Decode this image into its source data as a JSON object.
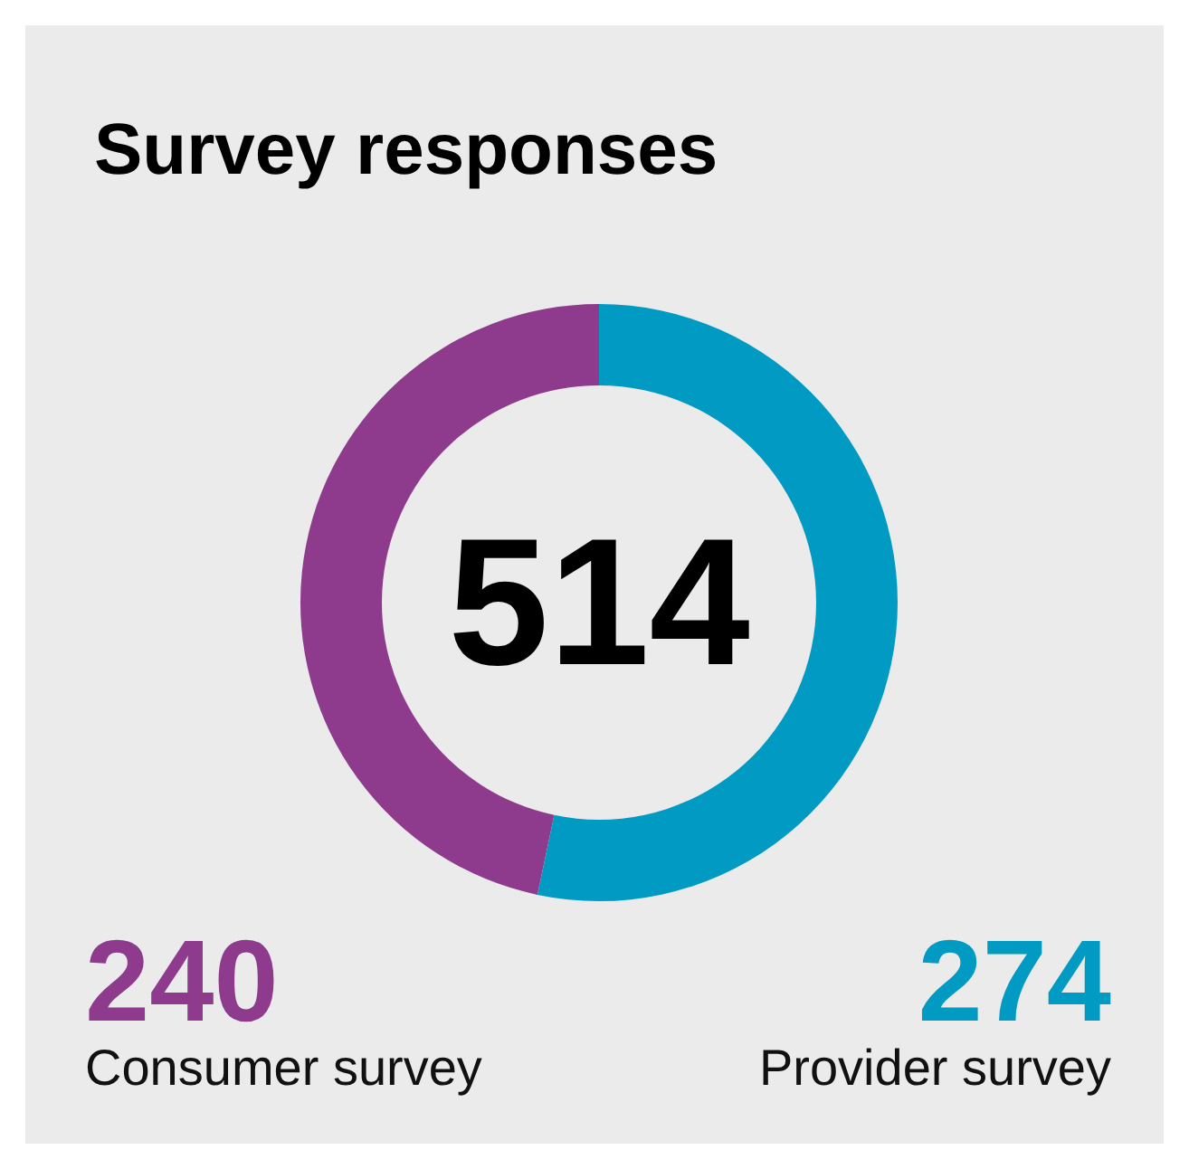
{
  "chart_data": {
    "type": "donut",
    "title": "Survey responses",
    "categories": [
      "Consumer survey",
      "Provider survey"
    ],
    "values": [
      240,
      274
    ],
    "colors": [
      "#8e3a8d",
      "#009ac3"
    ],
    "data_labels": true,
    "annotations": [
      "514"
    ],
    "legend": false
  }
}
